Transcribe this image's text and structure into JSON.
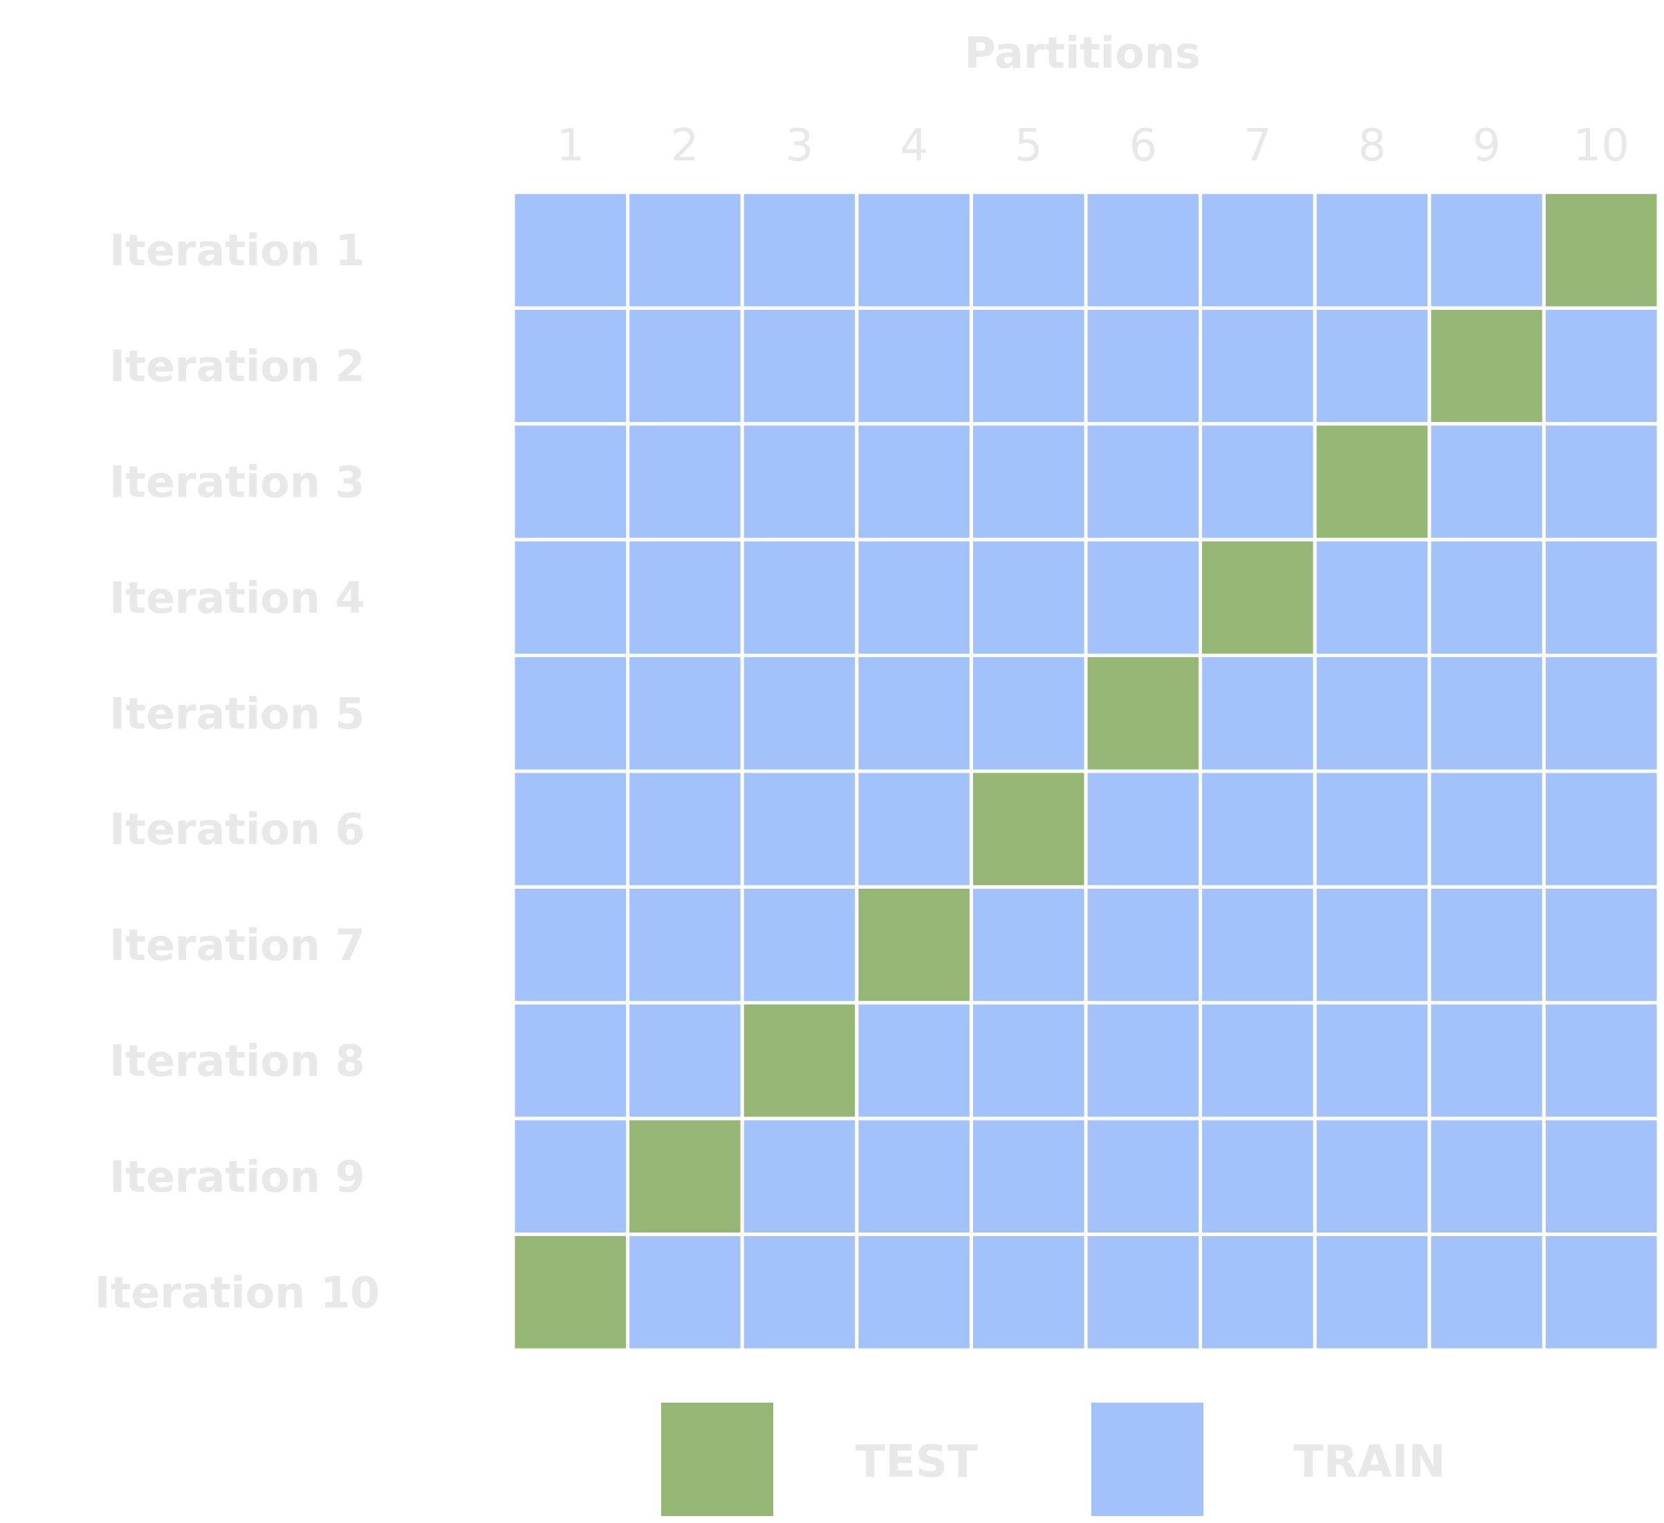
{
  "title": "Partitions",
  "columns": [
    "1",
    "2",
    "3",
    "4",
    "5",
    "6",
    "7",
    "8",
    "9",
    "10"
  ],
  "rows": [
    "Iteration 1",
    "Iteration 2",
    "Iteration 3",
    "Iteration 4",
    "Iteration 5",
    "Iteration 6",
    "Iteration 7",
    "Iteration 8",
    "Iteration 9",
    "Iteration 10"
  ],
  "test_partition_per_iteration": [
    10,
    9,
    8,
    7,
    6,
    5,
    4,
    3,
    2,
    1
  ],
  "colors": {
    "test": "#95b674",
    "train": "#a3c2fc",
    "label": "#e8e8e8"
  },
  "legend": {
    "test_label": "TEST",
    "train_label": "TRAIN"
  }
}
